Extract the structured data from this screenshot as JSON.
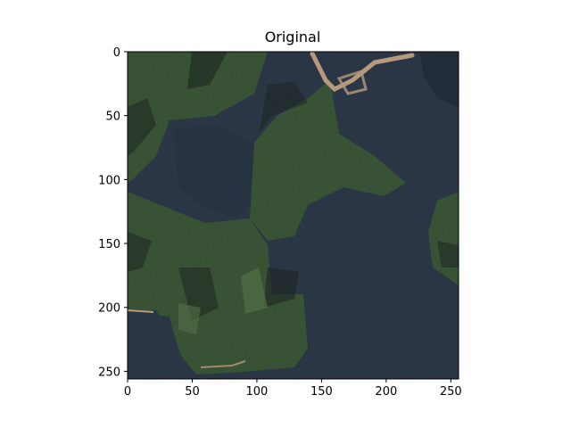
{
  "figure": {
    "title": "Original",
    "image_size": [
      256,
      256
    ],
    "description": "Aerial satellite image of forested green islands surrounded by dark blue-gray water, a light sandy path near the top center."
  },
  "axes": {
    "x_ticks": [
      0,
      50,
      100,
      150,
      200,
      250
    ],
    "y_ticks": [
      0,
      50,
      100,
      150,
      200,
      250
    ],
    "xlim": [
      0,
      256
    ],
    "ylim": [
      256,
      0
    ]
  },
  "colors": {
    "water": "#2f3b4c",
    "forest": "#3e5a3a",
    "forest_light": "#5b7a4e",
    "shadow": "#1f2a24",
    "sand": "#c9a98a"
  }
}
